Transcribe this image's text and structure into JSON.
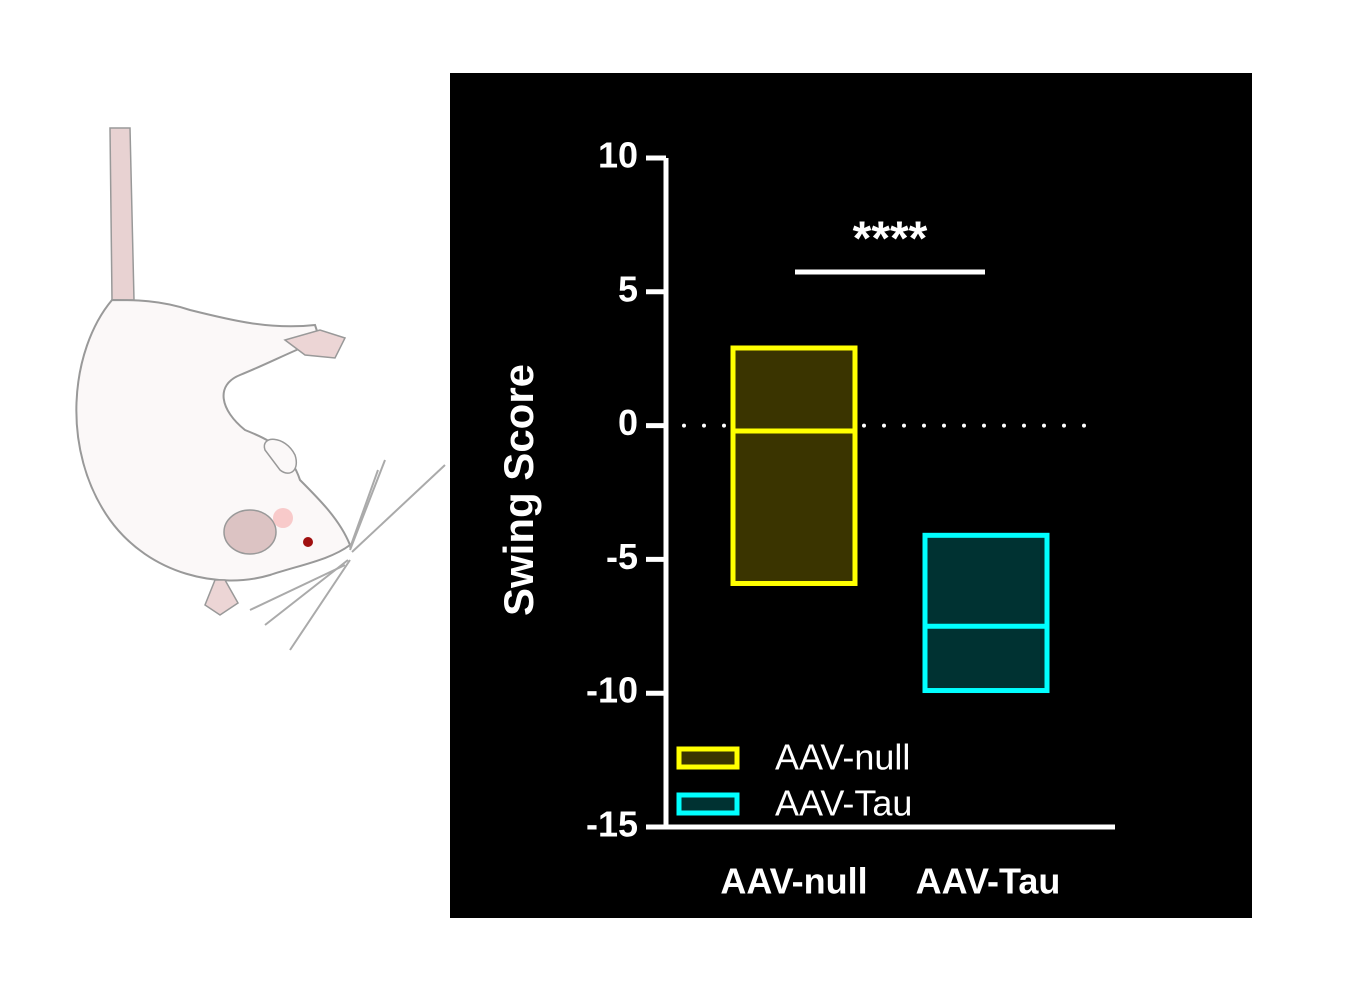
{
  "chart_data": {
    "type": "floating_bar",
    "y_label": "Swing Score",
    "annotation": "****",
    "categories": [
      "AAV-null",
      "AAV-Tau"
    ],
    "low": [
      -5.9,
      -9.9
    ],
    "high": [
      2.9,
      -4.1
    ],
    "median": [
      -0.2,
      -7.5
    ],
    "colors": [
      "#ffff00",
      "#00ffff"
    ],
    "fill_colors": [
      "#3a3400",
      "#003232"
    ],
    "reference_line": 0,
    "ylim": [
      -15,
      10
    ],
    "yticks": [
      -15,
      -10,
      -5,
      0,
      5,
      10
    ],
    "grid": false,
    "legend": "bottom-left"
  }
}
